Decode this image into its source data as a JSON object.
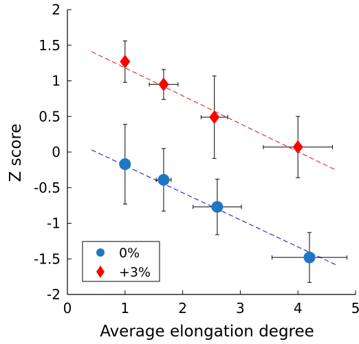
{
  "chart_data": {
    "type": "scatter",
    "xlabel": "Average elongation degree",
    "ylabel": "Z score",
    "xlim": [
      0,
      5
    ],
    "ylim": [
      -2,
      2
    ],
    "xticks": [
      "0",
      "1",
      "2",
      "3",
      "4",
      "5"
    ],
    "yticks": [
      "-2",
      "-1.5",
      "-1",
      "-0.5",
      "0",
      "0.5",
      "1",
      "1.5",
      "2"
    ],
    "grid": false,
    "legend_position": "bottom-left",
    "series": [
      {
        "name": "0%",
        "color": "#1f77c4",
        "marker": "circle",
        "points": [
          {
            "x": 1.0,
            "y": -0.17,
            "xerr": 0.05,
            "yerr": 0.56
          },
          {
            "x": 1.67,
            "y": -0.39,
            "xerr": 0.13,
            "yerr": 0.44
          },
          {
            "x": 2.6,
            "y": -0.77,
            "xerr": 0.42,
            "yerr": 0.39
          },
          {
            "x": 4.2,
            "y": -1.48,
            "xerr": 0.65,
            "yerr": 0.35
          }
        ],
        "fit": {
          "x": [
            0.42,
            4.65
          ],
          "y": [
            0.03,
            -1.58
          ],
          "color": "#2b2bd6"
        }
      },
      {
        "name": "+3%",
        "color": "#ff0000",
        "marker": "diamond",
        "points": [
          {
            "x": 1.0,
            "y": 1.27,
            "xerr": 0.05,
            "yerr": 0.29
          },
          {
            "x": 1.67,
            "y": 0.95,
            "xerr": 0.25,
            "yerr": 0.21
          },
          {
            "x": 2.55,
            "y": 0.49,
            "xerr": 0.23,
            "yerr": 0.58
          },
          {
            "x": 4.0,
            "y": 0.07,
            "xerr": 0.6,
            "yerr": 0.43
          }
        ],
        "fit": {
          "x": [
            0.42,
            4.65
          ],
          "y": [
            1.41,
            -0.25
          ],
          "color": "#e03030"
        }
      }
    ]
  }
}
